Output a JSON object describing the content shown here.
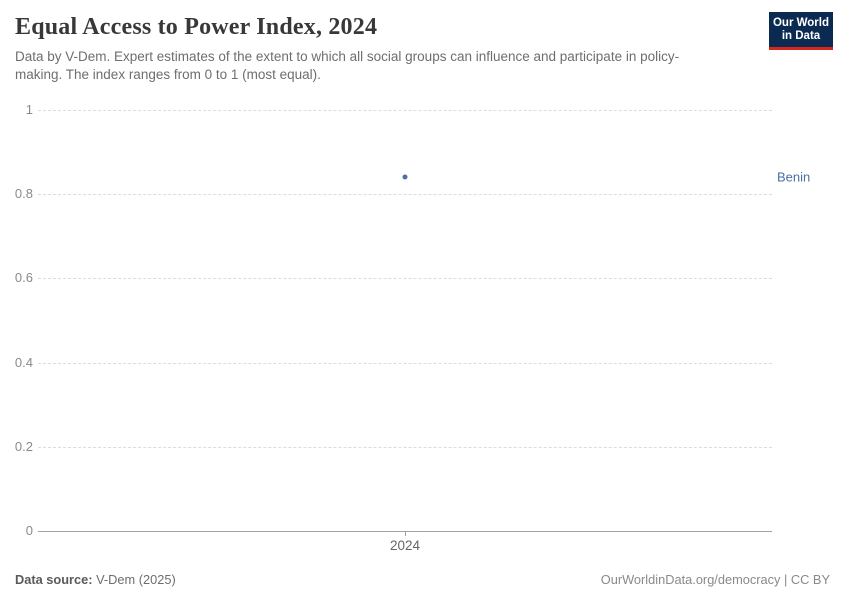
{
  "header": {
    "title": "Equal Access to Power Index, 2024",
    "subtitle": "Data by V-Dem. Expert estimates of the extent to which all social groups can influence and participate in policy-making. The index ranges from 0 to 1 (most equal).",
    "logo": {
      "line1": "Our World",
      "line2": "in Data",
      "bg_color": "#0b2a52",
      "bar_color": "#d6261d"
    }
  },
  "chart_data": {
    "type": "scatter",
    "title": "Equal Access to Power Index, 2024",
    "x": [
      2024
    ],
    "series": [
      {
        "name": "Benin",
        "values": [
          0.84
        ],
        "color": "#4c6fa5"
      }
    ],
    "xlabel": "",
    "ylabel": "",
    "ylim": [
      0,
      1
    ],
    "yticks": [
      0,
      0.2,
      0.4,
      0.6,
      0.8,
      1
    ],
    "xticks": [
      "2024"
    ],
    "grid": "horizontal dashed, zero-line solid",
    "legend_position": "right entity label",
    "gridline_color": "#dcdcdc",
    "zero_line_color": "#a1a1a1",
    "tick_label_color": "#8a8a8a"
  },
  "footer": {
    "source_label": "Data source:",
    "source_value": " V-Dem (2025)",
    "rights": "OurWorldinData.org/democracy | CC BY"
  }
}
